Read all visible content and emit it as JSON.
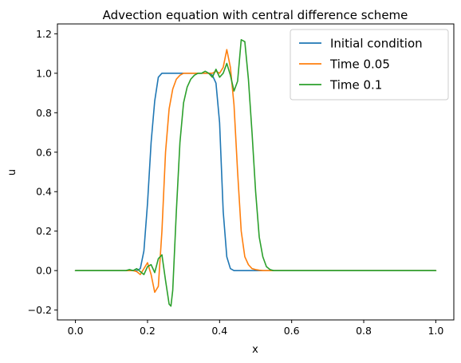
{
  "chart_data": {
    "type": "line",
    "title": "Advection equation with central difference scheme",
    "xlabel": "x",
    "ylabel": "u",
    "xlim": [
      -0.05,
      1.05
    ],
    "ylim": [
      -0.25,
      1.25
    ],
    "xticks": [
      0.0,
      0.2,
      0.4,
      0.6,
      0.8,
      1.0
    ],
    "xtick_labels": [
      "0.0",
      "0.2",
      "0.4",
      "0.6",
      "0.8",
      "1.0"
    ],
    "yticks": [
      -0.2,
      0.0,
      0.2,
      0.4,
      0.6,
      0.8,
      1.0,
      1.2
    ],
    "ytick_labels": [
      "−0.2",
      "0.0",
      "0.2",
      "0.4",
      "0.6",
      "0.8",
      "1.0",
      "1.2"
    ],
    "grid": false,
    "legend_position": "top-right",
    "series": [
      {
        "name": "Initial condition",
        "color": "#1f77b4",
        "x": [
          0.0,
          0.17,
          0.18,
          0.19,
          0.2,
          0.21,
          0.22,
          0.23,
          0.24,
          0.36,
          0.37,
          0.38,
          0.39,
          0.4,
          0.41,
          0.42,
          0.43,
          0.44,
          1.0
        ],
        "y": [
          0.0,
          0.0,
          0.01,
          0.1,
          0.34,
          0.65,
          0.86,
          0.98,
          1.0,
          1.0,
          1.0,
          0.99,
          0.95,
          0.75,
          0.3,
          0.07,
          0.01,
          0.0,
          0.0
        ]
      },
      {
        "name": "Time 0.05",
        "color": "#ff7f0e",
        "x": [
          0.0,
          0.16,
          0.17,
          0.18,
          0.19,
          0.2,
          0.21,
          0.22,
          0.23,
          0.24,
          0.25,
          0.26,
          0.27,
          0.28,
          0.29,
          0.3,
          0.31,
          0.37,
          0.38,
          0.39,
          0.4,
          0.41,
          0.42,
          0.43,
          0.44,
          0.45,
          0.46,
          0.47,
          0.48,
          0.49,
          0.5,
          0.51,
          0.52,
          0.53,
          0.54,
          1.0
        ],
        "y": [
          0.0,
          0.0,
          -0.005,
          -0.02,
          0.01,
          0.04,
          -0.02,
          -0.11,
          -0.08,
          0.2,
          0.6,
          0.82,
          0.92,
          0.97,
          0.99,
          1.0,
          1.0,
          1.0,
          1.0,
          1.01,
          1.0,
          1.03,
          1.12,
          1.03,
          0.84,
          0.5,
          0.2,
          0.07,
          0.03,
          0.01,
          0.005,
          0.002,
          0.0,
          0.0,
          0.0,
          0.0
        ]
      },
      {
        "name": "Time 0.1",
        "color": "#2ca02c",
        "x": [
          0.0,
          0.14,
          0.15,
          0.16,
          0.17,
          0.18,
          0.19,
          0.2,
          0.21,
          0.22,
          0.23,
          0.24,
          0.25,
          0.26,
          0.265,
          0.27,
          0.28,
          0.29,
          0.3,
          0.31,
          0.32,
          0.33,
          0.34,
          0.35,
          0.36,
          0.37,
          0.38,
          0.39,
          0.4,
          0.41,
          0.42,
          0.43,
          0.44,
          0.45,
          0.46,
          0.47,
          0.48,
          0.49,
          0.5,
          0.51,
          0.52,
          0.53,
          0.54,
          0.55,
          0.56,
          1.0
        ],
        "y": [
          0.0,
          0.0,
          0.005,
          0.0,
          0.01,
          -0.005,
          -0.02,
          0.02,
          0.03,
          -0.01,
          0.06,
          0.08,
          -0.05,
          -0.17,
          -0.18,
          -0.1,
          0.3,
          0.65,
          0.85,
          0.93,
          0.97,
          0.99,
          1.0,
          1.0,
          1.01,
          1.0,
          0.98,
          1.02,
          0.98,
          1.0,
          1.05,
          0.99,
          0.91,
          0.96,
          1.17,
          1.16,
          0.97,
          0.7,
          0.4,
          0.17,
          0.07,
          0.02,
          0.005,
          0.0,
          0.0,
          0.0
        ]
      }
    ]
  }
}
